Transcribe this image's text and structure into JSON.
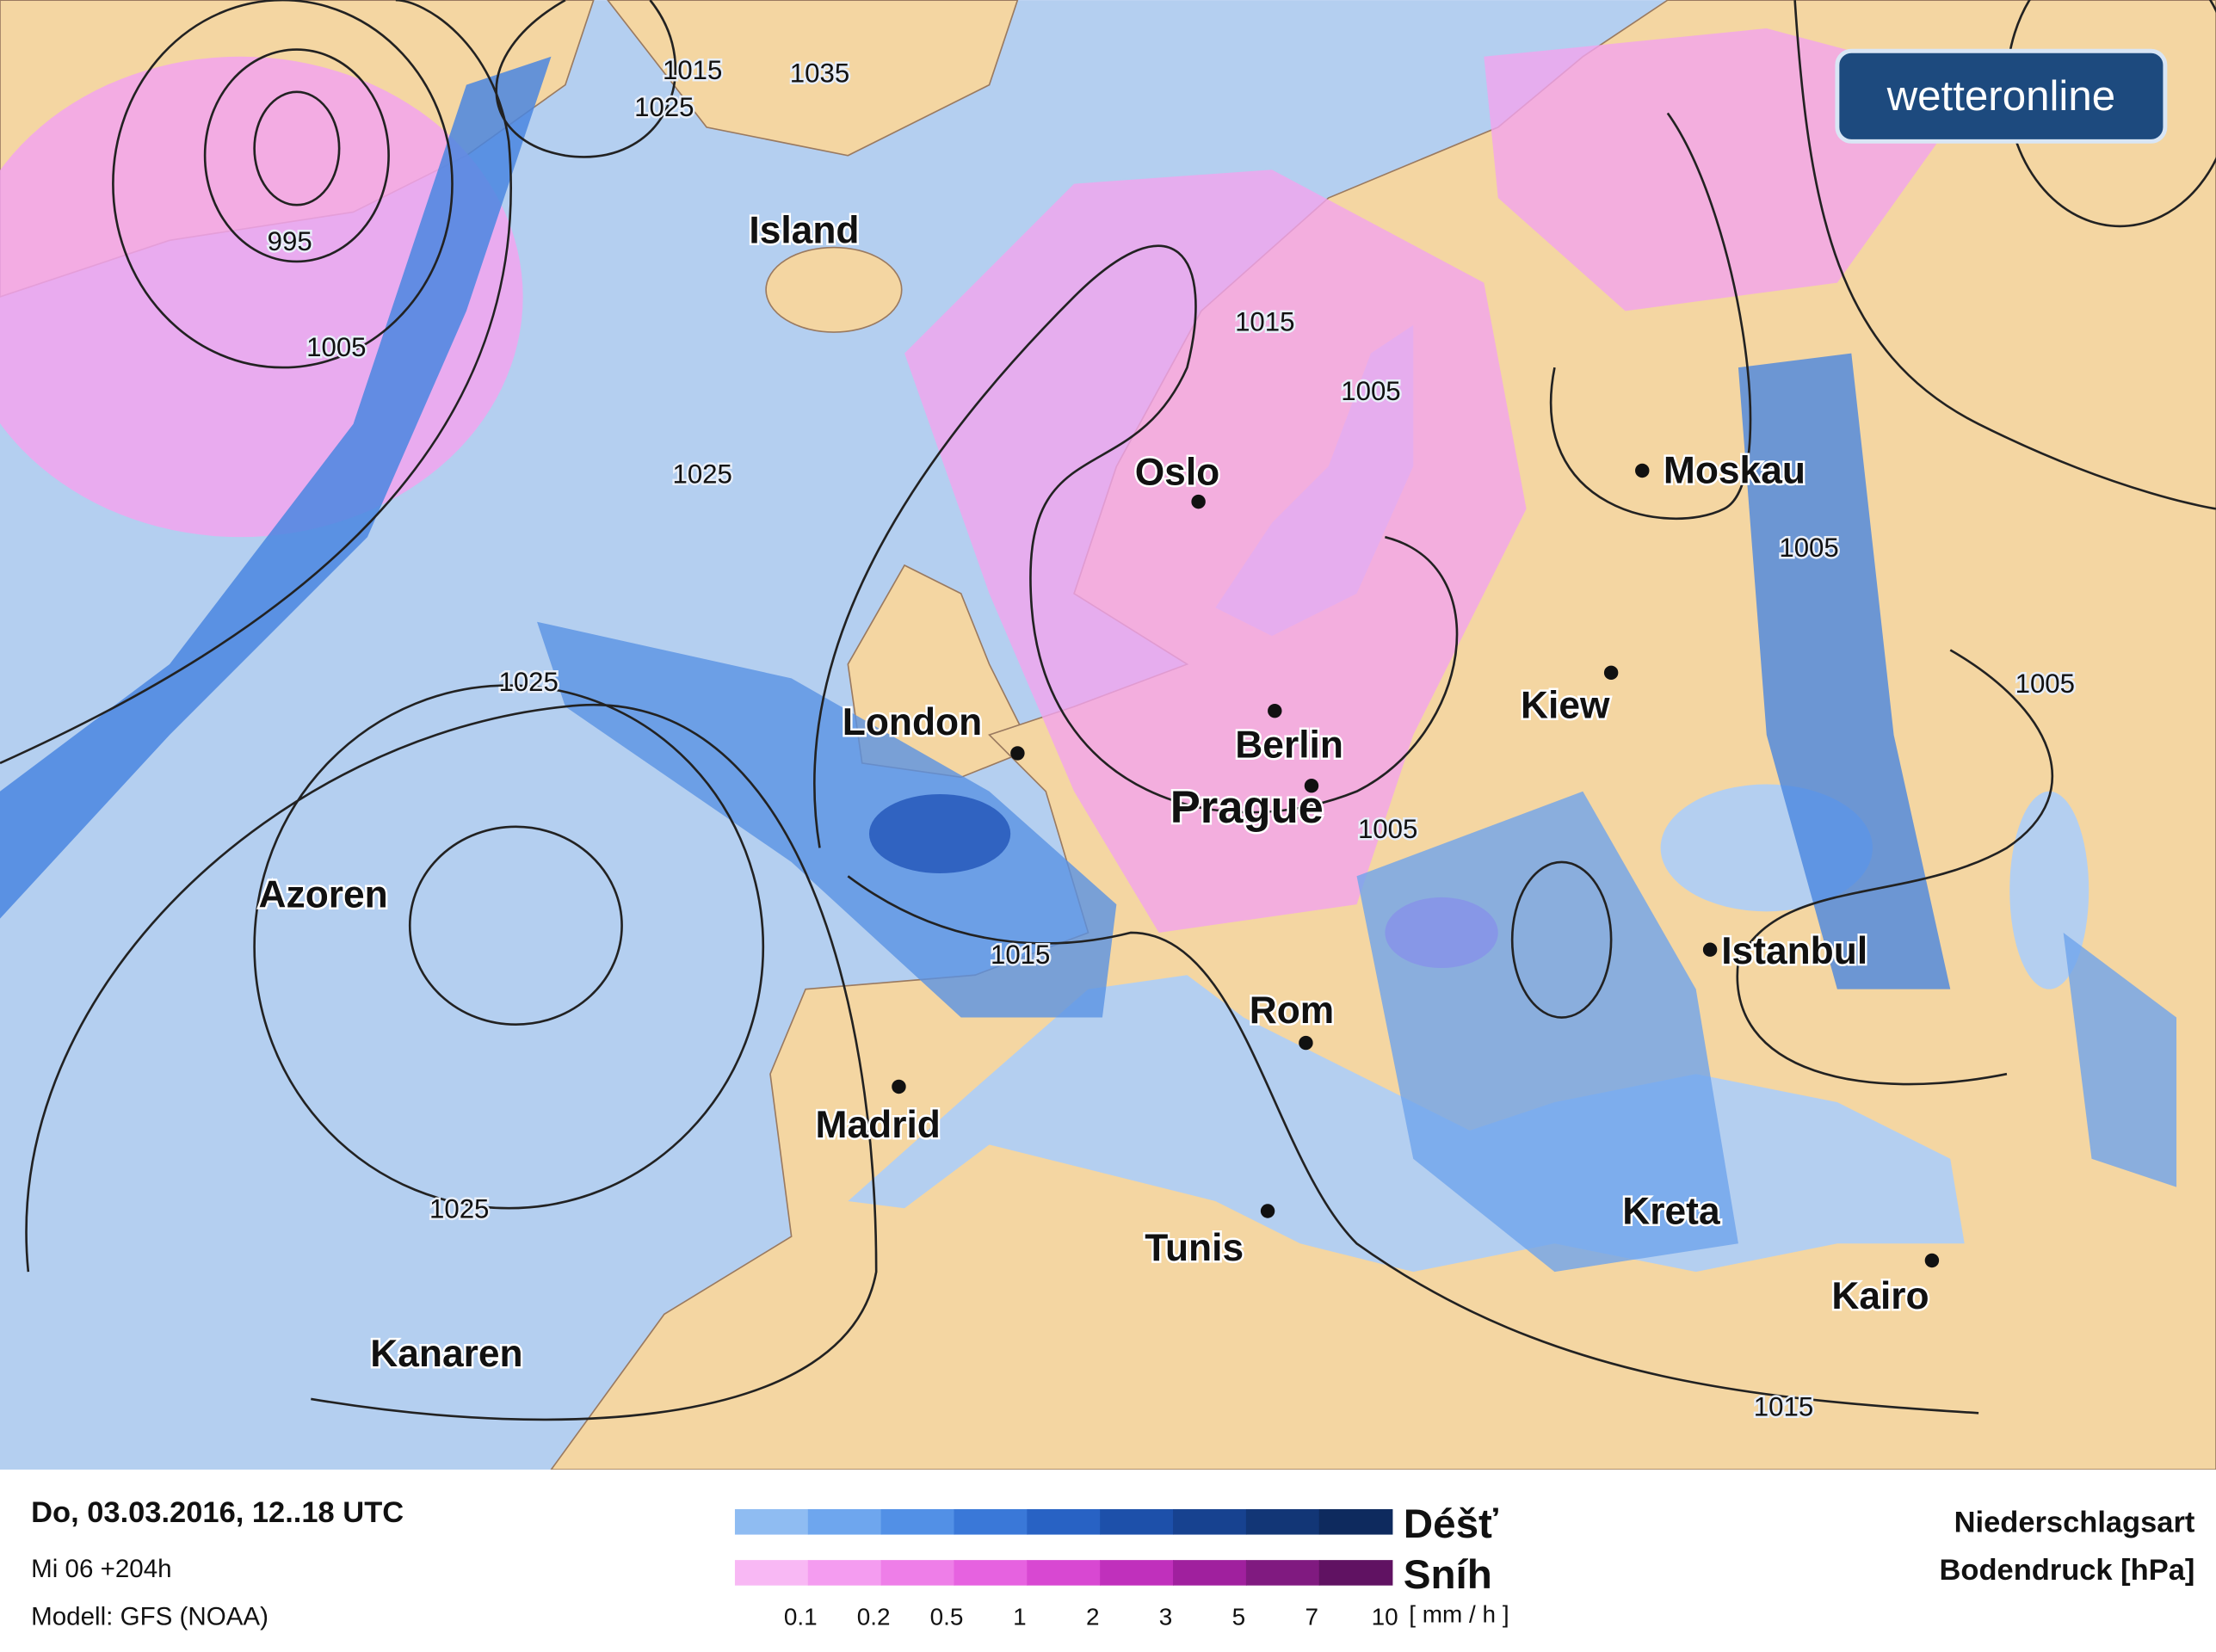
{
  "logo": "wetteronline",
  "cities": [
    "Island",
    "Oslo",
    "Moskau",
    "London",
    "Berlin",
    "Kiew",
    "Prague",
    "Azoren",
    "Istanbul",
    "Rom",
    "Madrid",
    "Tunis",
    "Kreta",
    "Kairo",
    "Kanaren"
  ],
  "isobar_labels": [
    "1015",
    "1035",
    "1025",
    "995",
    "1005",
    "1025",
    "1015",
    "1005",
    "1005",
    "1025",
    "1005",
    "1005",
    "1015",
    "1025",
    "1015"
  ],
  "footer": {
    "date": "Do, 03.03.2016, 12..18 UTC",
    "run": "Mi 06 +204h",
    "model": "Modell: GFS (NOAA)"
  },
  "legend": {
    "rain": "Déšť",
    "snow": "Sníh",
    "scale": [
      "0.1",
      "0.2",
      "0.5",
      "1",
      "2",
      "3",
      "5",
      "7",
      "10"
    ],
    "unit": "[ mm / h ]",
    "title": "Niederschlagsart",
    "subtitle": "Bodendruck [hPa]"
  }
}
